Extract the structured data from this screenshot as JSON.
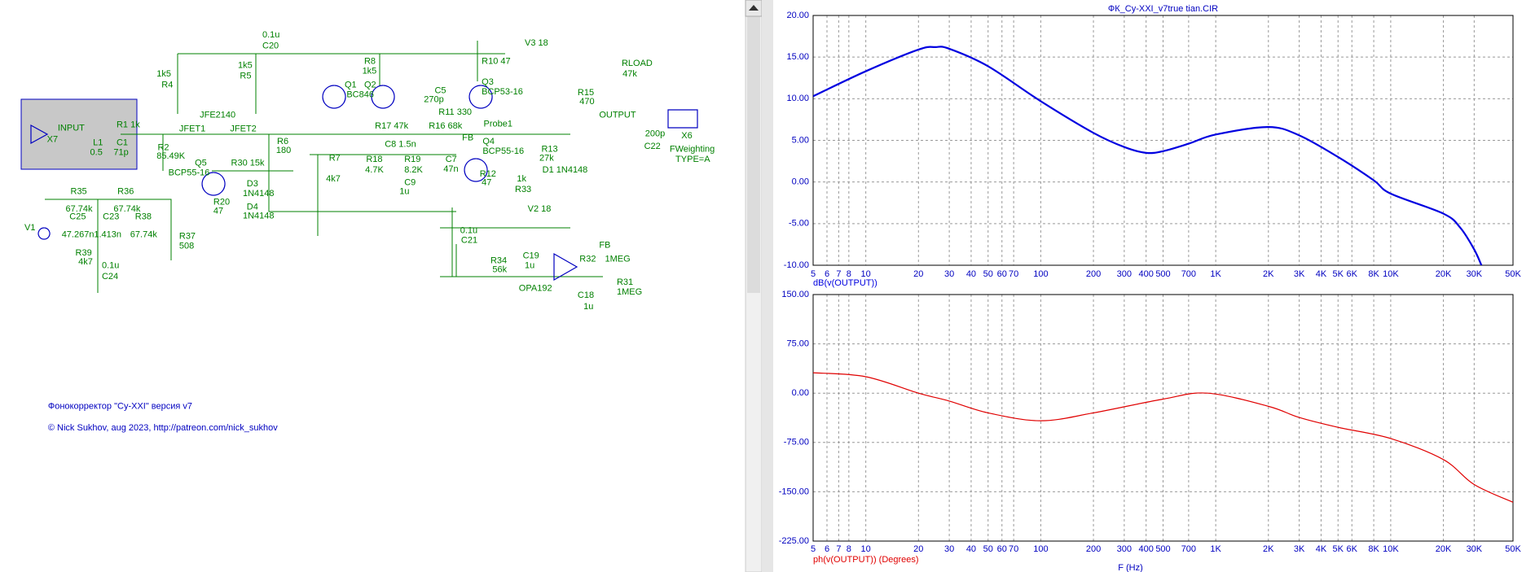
{
  "schematic": {
    "labels": [
      "0.1u",
      "C20",
      "V3 18",
      "R8",
      "1k5",
      "1k5",
      "R5",
      "R10 47",
      "1k5",
      "R4",
      "Q3",
      "BCP53-16",
      "Q1",
      "BC846",
      "Q2",
      "C5",
      "270p",
      "RLOAD",
      "47k",
      "R15",
      "470",
      "JFE2140",
      "R11 330",
      "INPUT",
      "R1 1k",
      "JFET1",
      "JFET2",
      "R17 47k",
      "R16 68k",
      "Probe1",
      "OUTPUT",
      "X6",
      "200p",
      "X7",
      "L1",
      "0.5",
      "C1",
      "71p",
      "R2",
      "85.49K",
      "R6",
      "180",
      "C8 1.5n",
      "FB",
      "Q4",
      "BCP55-16",
      "R13",
      "27k",
      "FWeighting",
      "TYPE=A",
      "C22",
      "R7",
      "R18",
      "4.7K",
      "R19",
      "8.2K",
      "C7",
      "47n",
      "D1 1N4148",
      "Q5",
      "R30 15k",
      "BCP55-16",
      "4k7",
      "R12",
      "47",
      "1k",
      "R33",
      "D3",
      "1N4148",
      "C9",
      "1u",
      "R35",
      "R36",
      "R20",
      "47",
      "D4",
      "1N4148",
      "V2 18",
      "67.74k",
      "67.74k",
      "C25",
      "C23",
      "R38",
      "V1",
      "47.267n",
      "1.413n",
      "67.74k",
      "0.1u",
      "C21",
      "R37",
      "508",
      "C19",
      "1u",
      "FB",
      "R39",
      "4k7",
      "0.1u",
      "C24",
      "R34",
      "56k",
      "R32",
      "1MEG",
      "R31",
      "1MEG",
      "OPA192",
      "C18",
      "1u"
    ],
    "footer": [
      "Фонокорректор \"Cy-XXI\" версия v7",
      "© Nick Sukhov, aug 2023, http://patreon.com/nick_sukhov"
    ]
  },
  "chart_data": [
    {
      "type": "line",
      "title": "ФК_Cy-XXI_v7true tian.CIR",
      "xscale": "log",
      "grid": true,
      "xlim": [
        5,
        50000
      ],
      "xticks": [
        5,
        6,
        7,
        8,
        10,
        20,
        30,
        40,
        50,
        60,
        70,
        100,
        200,
        300,
        400,
        500,
        700,
        {
          "value": 1000,
          "label": "1K"
        },
        {
          "value": 2000,
          "label": "2K"
        },
        {
          "value": 3000,
          "label": "3K"
        },
        {
          "value": 4000,
          "label": "4K"
        },
        {
          "value": 5000,
          "label": "5K"
        },
        {
          "value": 6000,
          "label": "6K"
        },
        {
          "value": 8000,
          "label": "8K"
        },
        {
          "value": 10000,
          "label": "10K"
        },
        {
          "value": 20000,
          "label": "20K"
        },
        {
          "value": 30000,
          "label": "30K"
        },
        {
          "value": 50000,
          "label": "50K"
        }
      ],
      "ylim": [
        -10,
        20
      ],
      "yticks": [
        {
          "value": 20,
          "label": "20.00"
        },
        {
          "value": 15,
          "label": "15.00"
        },
        {
          "value": 10,
          "label": "10.00"
        },
        {
          "value": 5,
          "label": "5.00"
        },
        {
          "value": 0,
          "label": "0.00"
        },
        {
          "value": -5,
          "label": "-5.00"
        },
        {
          "value": -10,
          "label": "-10.00"
        }
      ],
      "x": [
        5,
        10,
        20,
        25,
        30,
        50,
        100,
        200,
        300,
        400,
        500,
        700,
        1000,
        2000,
        3000,
        5000,
        8000,
        10000,
        20000,
        25000,
        30000,
        33000
      ],
      "series": [
        {
          "name": "dB(v(OUTPUT))",
          "color": "#0000e0",
          "values": [
            10.3,
            13.3,
            15.9,
            16.2,
            16.0,
            13.9,
            9.7,
            5.9,
            4.2,
            3.5,
            3.7,
            4.6,
            5.7,
            6.6,
            5.6,
            3.0,
            0.2,
            -1.4,
            -3.8,
            -5.5,
            -8.1,
            -10
          ]
        }
      ]
    },
    {
      "type": "line",
      "xscale": "log",
      "grid": true,
      "xlabel": "F (Hz)",
      "xlim": [
        5,
        50000
      ],
      "xticks": [
        5,
        6,
        7,
        8,
        10,
        20,
        30,
        40,
        50,
        60,
        70,
        100,
        200,
        300,
        400,
        500,
        700,
        {
          "value": 1000,
          "label": "1K"
        },
        {
          "value": 2000,
          "label": "2K"
        },
        {
          "value": 3000,
          "label": "3K"
        },
        {
          "value": 4000,
          "label": "4K"
        },
        {
          "value": 5000,
          "label": "5K"
        },
        {
          "value": 6000,
          "label": "6K"
        },
        {
          "value": 8000,
          "label": "8K"
        },
        {
          "value": 10000,
          "label": "10K"
        },
        {
          "value": 20000,
          "label": "20K"
        },
        {
          "value": 30000,
          "label": "30K"
        },
        {
          "value": 50000,
          "label": "50K"
        }
      ],
      "ylim": [
        -225,
        150
      ],
      "yticks": [
        {
          "value": 150,
          "label": "150.00"
        },
        {
          "value": 75,
          "label": "75.00"
        },
        {
          "value": 0,
          "label": "0.00"
        },
        {
          "value": -75,
          "label": "-75.00"
        },
        {
          "value": -150,
          "label": "-150.00"
        },
        {
          "value": -225,
          "label": "-225.00"
        }
      ],
      "x": [
        5,
        10,
        20,
        30,
        50,
        100,
        200,
        500,
        900,
        2000,
        3000,
        5000,
        10000,
        20000,
        30000,
        50000
      ],
      "series": [
        {
          "name": "ph(v(OUTPUT)) (Degrees)",
          "color": "#e00000",
          "values": [
            31,
            25,
            0,
            -12,
            -30,
            -42,
            -30,
            -9,
            0,
            -20,
            -37,
            -52,
            -69,
            -101,
            -139,
            -166
          ]
        }
      ]
    }
  ]
}
